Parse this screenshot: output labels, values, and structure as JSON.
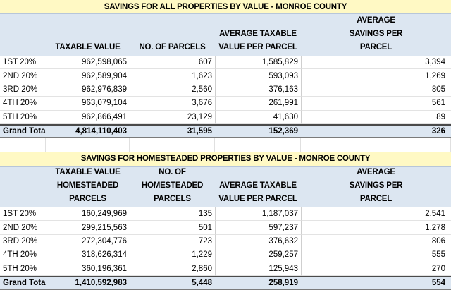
{
  "tables": [
    {
      "title": "SAVINGS FOR ALL PROPERTIES BY VALUE - MONROE COUNTY",
      "headers": [
        "",
        "TAXABLE VALUE",
        "NO. OF PARCELS",
        "AVERAGE TAXABLE\nVALUE PER PARCEL",
        "AVERAGE\nSAVINGS PER\nPARCEL"
      ],
      "rows": [
        [
          "1ST 20%",
          "962,598,065",
          "607",
          "1,585,829",
          "3,394"
        ],
        [
          "2ND 20%",
          "962,589,904",
          "1,623",
          "593,093",
          "1,269"
        ],
        [
          "3RD 20%",
          "962,976,839",
          "2,560",
          "376,163",
          "805"
        ],
        [
          "4TH 20%",
          "963,079,104",
          "3,676",
          "261,991",
          "561"
        ],
        [
          "5TH 20%",
          "962,866,491",
          "23,129",
          "41,630",
          "89"
        ]
      ],
      "total": [
        "Grand Total",
        "4,814,110,403",
        "31,595",
        "152,369",
        "326"
      ]
    },
    {
      "title": "SAVINGS FOR HOMESTEADED PROPERTIES BY VALUE - MONROE COUNTY",
      "headers": [
        "",
        "TAXABLE VALUE\nHOMESTEADED\nPARCELS",
        "NO. OF\nHOMESTEADED\nPARCELS",
        "AVERAGE TAXABLE\nVALUE PER PARCEL",
        "AVERAGE\nSAVINGS PER\nPARCEL"
      ],
      "rows": [
        [
          "1ST 20%",
          "160,249,969",
          "135",
          "1,187,037",
          "2,541"
        ],
        [
          "2ND 20%",
          "299,215,563",
          "501",
          "597,237",
          "1,278"
        ],
        [
          "3RD 20%",
          "272,304,776",
          "723",
          "376,632",
          "806"
        ],
        [
          "4TH 20%",
          "318,626,314",
          "1,229",
          "259,257",
          "555"
        ],
        [
          "5TH 20%",
          "360,196,361",
          "2,860",
          "125,943",
          "270"
        ]
      ],
      "total": [
        "Grand Total",
        "1,410,592,983",
        "5,448",
        "258,919",
        "554"
      ]
    }
  ],
  "colors": {
    "title_bg": "#fff9c4",
    "header_bg": "#dce6f1"
  }
}
